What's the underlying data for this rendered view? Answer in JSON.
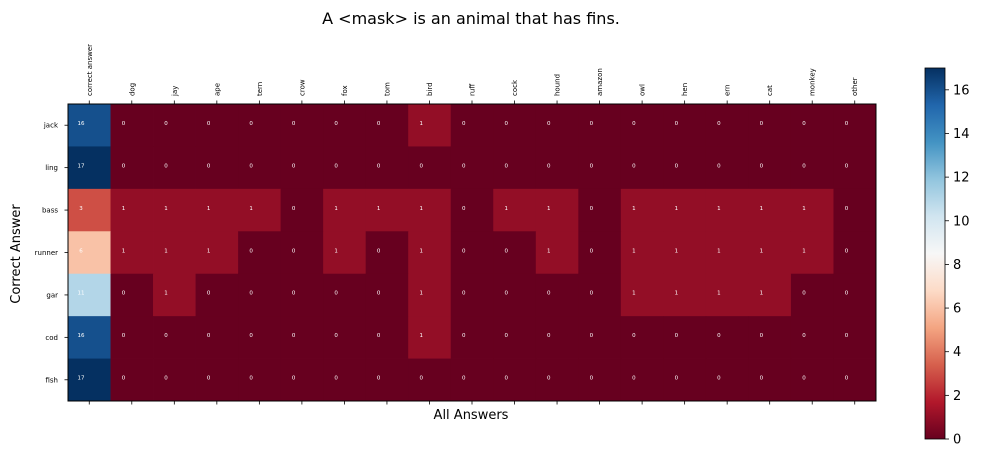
{
  "chart_data": {
    "type": "heatmap",
    "title": "A <mask> is an animal that has fins.",
    "xlabel": "All Answers",
    "ylabel": "Correct Answer",
    "x_categories": [
      "correct answer",
      "dog",
      "jay",
      "ape",
      "tern",
      "crow",
      "fox",
      "tom",
      "bird",
      "ruff",
      "cock",
      "hound",
      "amazon",
      "owl",
      "hen",
      "ern",
      "cat",
      "monkey",
      "other"
    ],
    "y_categories": [
      "jack",
      "ling",
      "bass",
      "runner",
      "gar",
      "cod",
      "fish"
    ],
    "values": [
      [
        16,
        0,
        0,
        0,
        0,
        0,
        0,
        0,
        1,
        0,
        0,
        0,
        0,
        0,
        0,
        0,
        0,
        0,
        0
      ],
      [
        17,
        0,
        0,
        0,
        0,
        0,
        0,
        0,
        0,
        0,
        0,
        0,
        0,
        0,
        0,
        0,
        0,
        0,
        0
      ],
      [
        3,
        1,
        1,
        1,
        1,
        0,
        1,
        1,
        1,
        0,
        1,
        1,
        0,
        1,
        1,
        1,
        1,
        1,
        0
      ],
      [
        6,
        1,
        1,
        1,
        0,
        0,
        1,
        0,
        1,
        0,
        0,
        1,
        0,
        1,
        1,
        1,
        1,
        1,
        0
      ],
      [
        11,
        0,
        1,
        0,
        0,
        0,
        0,
        0,
        1,
        0,
        0,
        0,
        0,
        1,
        1,
        1,
        1,
        0,
        0
      ],
      [
        16,
        0,
        0,
        0,
        0,
        0,
        0,
        0,
        1,
        0,
        0,
        0,
        0,
        0,
        0,
        0,
        0,
        0,
        0
      ],
      [
        17,
        0,
        0,
        0,
        0,
        0,
        0,
        0,
        0,
        0,
        0,
        0,
        0,
        0,
        0,
        0,
        0,
        0,
        0
      ]
    ],
    "colormap": "RdBu",
    "colorbar": {
      "range": [
        0,
        17
      ],
      "ticks": [
        0,
        2,
        4,
        6,
        8,
        10,
        12,
        14,
        16
      ]
    },
    "grid": false
  }
}
